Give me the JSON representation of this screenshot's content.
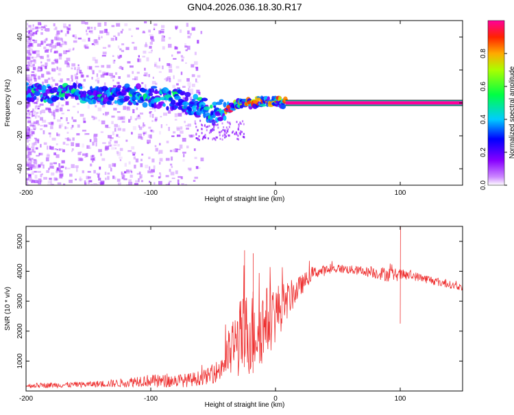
{
  "title": "GN04.2026.036.18.30.R17",
  "colors": {
    "snr_line": "#ee3030",
    "frame": "#000000",
    "spectral_low": "#aa55ff",
    "spectral_high": "#ff0066"
  },
  "chart_data": [
    {
      "type": "heatmap",
      "name": "spectrogram",
      "xlabel": "Height of straight line (km)",
      "ylabel": "Frequency (Hz)",
      "xlim": [
        -200,
        150
      ],
      "ylim": [
        -50,
        50
      ],
      "xticks": [
        -200,
        -100,
        0,
        100
      ],
      "yticks": [
        -40,
        -20,
        0,
        20,
        40
      ],
      "grid": false,
      "colorbar": {
        "label": "Normalized spectral amplitude",
        "range": [
          0,
          1
        ],
        "ticks": [
          "0.0",
          "0.2",
          "0.4",
          "0.6",
          "0.8"
        ],
        "tick_values": [
          0.0,
          0.2,
          0.4,
          0.6,
          0.8
        ]
      },
      "tone_trace": [
        {
          "x": -200,
          "y": 7
        },
        {
          "x": -180,
          "y": 6
        },
        {
          "x": -160,
          "y": 6
        },
        {
          "x": -140,
          "y": 5
        },
        {
          "x": -120,
          "y": 5
        },
        {
          "x": -100,
          "y": 4
        },
        {
          "x": -90,
          "y": 3
        },
        {
          "x": -80,
          "y": 2
        },
        {
          "x": -70,
          "y": -1
        },
        {
          "x": -60,
          "y": -3
        },
        {
          "x": -50,
          "y": -6
        },
        {
          "x": -40,
          "y": -3
        },
        {
          "x": -30,
          "y": -1
        },
        {
          "x": -20,
          "y": 0
        },
        {
          "x": -10,
          "y": 1
        },
        {
          "x": 0,
          "y": 1
        },
        {
          "x": 10,
          "y": 0
        },
        {
          "x": 150,
          "y": 0
        }
      ],
      "steady_tone": {
        "x_start": 8,
        "x_end": 150,
        "y": 0,
        "amplitude": 1.0
      }
    },
    {
      "type": "line",
      "name": "snr",
      "xlabel": "Height of straight line (km)",
      "ylabel": "SNR (10 * v/v)",
      "xlim": [
        -200,
        150
      ],
      "ylim": [
        0,
        5500
      ],
      "xticks": [
        -200,
        -100,
        0,
        100
      ],
      "yticks": [
        1000,
        2000,
        3000,
        4000,
        5000
      ],
      "grid": false,
      "envelope": [
        {
          "x": -200,
          "mean": 180,
          "spread": 80
        },
        {
          "x": -150,
          "mean": 220,
          "spread": 100
        },
        {
          "x": -120,
          "mean": 270,
          "spread": 150
        },
        {
          "x": -110,
          "mean": 350,
          "spread": 200
        },
        {
          "x": -90,
          "mean": 330,
          "spread": 220
        },
        {
          "x": -70,
          "mean": 360,
          "spread": 230
        },
        {
          "x": -55,
          "mean": 480,
          "spread": 260
        },
        {
          "x": -45,
          "mean": 700,
          "spread": 400
        },
        {
          "x": -38,
          "mean": 1200,
          "spread": 800
        },
        {
          "x": -30,
          "mean": 1700,
          "spread": 1300
        },
        {
          "x": -20,
          "mean": 2000,
          "spread": 1500
        },
        {
          "x": -10,
          "mean": 2200,
          "spread": 1300
        },
        {
          "x": 0,
          "mean": 2600,
          "spread": 1000
        },
        {
          "x": 10,
          "mean": 3050,
          "spread": 600
        },
        {
          "x": 20,
          "mean": 3500,
          "spread": 350
        },
        {
          "x": 30,
          "mean": 3950,
          "spread": 200
        },
        {
          "x": 50,
          "mean": 4100,
          "spread": 150
        },
        {
          "x": 70,
          "mean": 4000,
          "spread": 150
        },
        {
          "x": 90,
          "mean": 3900,
          "spread": 250
        },
        {
          "x": 110,
          "mean": 3850,
          "spread": 150
        },
        {
          "x": 130,
          "mean": 3650,
          "spread": 150
        },
        {
          "x": 150,
          "mean": 3450,
          "spread": 100
        }
      ],
      "features": [
        {
          "x": 100,
          "min": 2250,
          "max": 5500
        },
        {
          "x": -25,
          "min": 800,
          "max": 4700
        },
        {
          "x": -18,
          "min": 600,
          "max": 4600
        }
      ]
    }
  ]
}
